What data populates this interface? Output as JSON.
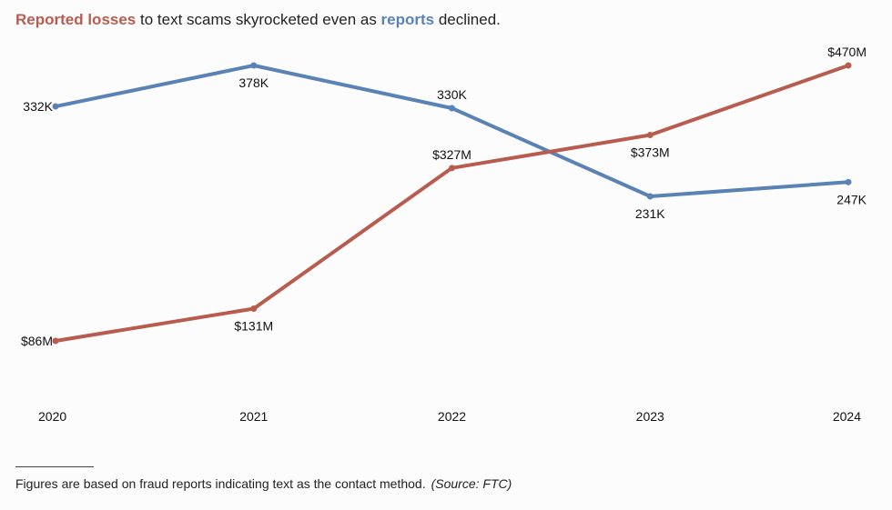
{
  "title": {
    "part1": "Reported losses",
    "part2": " to text scams skyrocketed even as ",
    "part3": "reports",
    "part4": " declined."
  },
  "colors": {
    "losses": "#b85c4f",
    "reports": "#5b82b5"
  },
  "chart_data": {
    "type": "line",
    "title": "Reported losses to text scams skyrocketed even as reports declined.",
    "xlabel": "",
    "ylabel": "",
    "grid": false,
    "legend": "none",
    "x": [
      "2020",
      "2021",
      "2022",
      "2023",
      "2024"
    ],
    "series": [
      {
        "name": "Reported losses",
        "values": [
          86,
          131,
          327,
          373,
          470
        ],
        "labels": [
          "$86M",
          "$131M",
          "$327M",
          "$373M",
          "$470M"
        ],
        "label_positions": [
          "left",
          "below",
          "above",
          "below",
          "above"
        ]
      },
      {
        "name": "reports",
        "values": [
          332,
          378,
          330,
          231,
          247
        ],
        "labels": [
          "332K",
          "378K",
          "330K",
          "231K",
          "247K"
        ],
        "label_positions": [
          "left",
          "below",
          "above",
          "below",
          "below"
        ]
      }
    ]
  },
  "footnote": {
    "text": "Figures are based on fraud reports indicating text as the contact method.",
    "source": "(Source: FTC)"
  }
}
